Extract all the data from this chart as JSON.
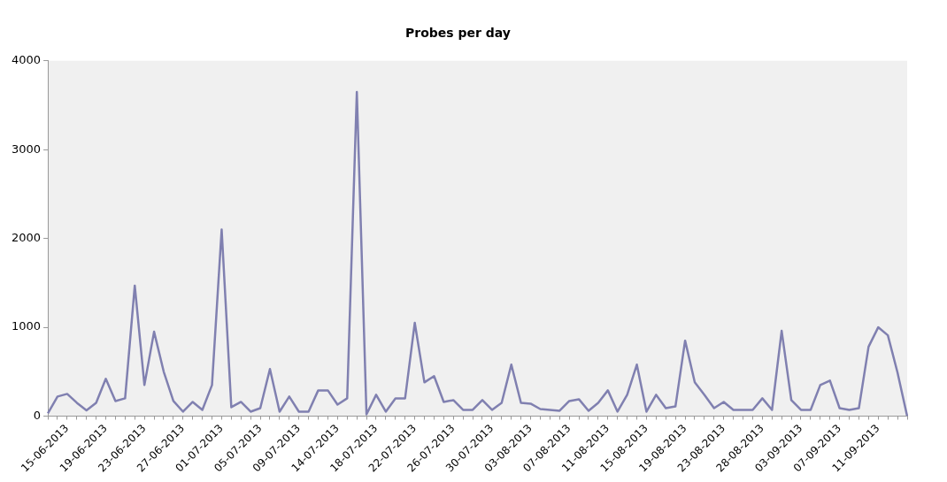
{
  "chart_data": {
    "type": "line",
    "title": "Probes per day",
    "categories": [
      null,
      null,
      "15-06-2013",
      null,
      null,
      null,
      "19-06-2013",
      null,
      null,
      null,
      "23-06-2013",
      null,
      null,
      null,
      "27-06-2013",
      null,
      null,
      null,
      "01-07-2013",
      null,
      null,
      null,
      "05-07-2013",
      null,
      null,
      null,
      "09-07-2013",
      null,
      null,
      null,
      "14-07-2013",
      null,
      null,
      null,
      "18-07-2013",
      null,
      null,
      null,
      "22-07-2013",
      null,
      null,
      null,
      "26-07-2013",
      null,
      null,
      null,
      "30-07-2013",
      null,
      null,
      null,
      "03-08-2013",
      null,
      null,
      null,
      "07-08-2013",
      null,
      null,
      null,
      "11-08-2013",
      null,
      null,
      null,
      "15-08-2013",
      null,
      null,
      null,
      "19-08-2013",
      null,
      null,
      null,
      "23-08-2013",
      null,
      null,
      null,
      "28-08-2013",
      null,
      null,
      null,
      "03-09-2013",
      null,
      null,
      null,
      "07-09-2013",
      null,
      null,
      null,
      "11-09-2013",
      null,
      null,
      null
    ],
    "values": [
      30,
      220,
      250,
      150,
      65,
      150,
      420,
      170,
      200,
      1470,
      350,
      950,
      500,
      170,
      50,
      160,
      70,
      350,
      2100,
      100,
      160,
      50,
      90,
      530,
      50,
      220,
      50,
      50,
      290,
      290,
      130,
      200,
      3650,
      20,
      240,
      50,
      200,
      200,
      1050,
      380,
      450,
      160,
      180,
      70,
      70,
      180,
      70,
      150,
      580,
      150,
      140,
      80,
      70,
      60,
      170,
      190,
      60,
      150,
      290,
      50,
      240,
      580,
      50,
      240,
      90,
      110,
      850,
      380,
      240,
      90,
      160,
      70,
      70,
      70,
      200,
      70,
      960,
      180,
      70,
      70,
      350,
      400,
      90,
      70,
      90,
      780,
      1000,
      910,
      490,
      0
    ],
    "color": "#8080b0",
    "ylim": [
      0,
      4000
    ],
    "yticks": [
      0,
      1000,
      2000,
      3000,
      4000
    ],
    "grid": false,
    "legend": false,
    "marker": "none",
    "line_style": "solid"
  }
}
